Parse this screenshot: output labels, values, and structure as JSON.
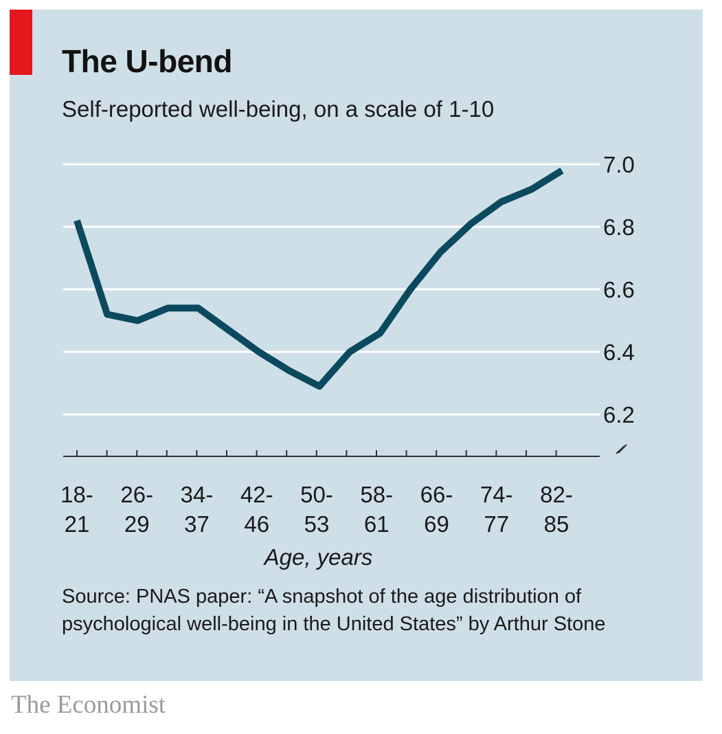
{
  "header": {
    "title": "The U-bend",
    "subtitle": "Self-reported well-being, on a scale of 1-10"
  },
  "chart_data": {
    "type": "line",
    "title": "The U-bend",
    "subtitle": "Self-reported well-being, on a scale of 1-10",
    "xlabel": "Age, years",
    "ylabel": "",
    "ylim": [
      6.1,
      7.0
    ],
    "yticks": [
      6.2,
      6.4,
      6.6,
      6.8,
      7.0
    ],
    "ytick_labels": [
      "6.2",
      "6.4",
      "6.6",
      "6.8",
      "7.0"
    ],
    "grid": true,
    "axis_break": true,
    "x_labels": [
      {
        "top": "18-",
        "bottom": "21"
      },
      {
        "top": "26-",
        "bottom": "29"
      },
      {
        "top": "34-",
        "bottom": "37"
      },
      {
        "top": "42-",
        "bottom": "46"
      },
      {
        "top": "50-",
        "bottom": "53"
      },
      {
        "top": "58-",
        "bottom": "61"
      },
      {
        "top": "66-",
        "bottom": "69"
      },
      {
        "top": "74-",
        "bottom": "77"
      },
      {
        "top": "82-",
        "bottom": "85"
      }
    ],
    "series": [
      {
        "name": "Self-reported well-being",
        "color": "#0b4a5e",
        "values": [
          6.82,
          6.52,
          6.5,
          6.54,
          6.54,
          6.47,
          6.4,
          6.34,
          6.29,
          6.4,
          6.46,
          6.6,
          6.72,
          6.81,
          6.88,
          6.92,
          6.98
        ]
      }
    ]
  },
  "colors": {
    "panel_background": "#cfdfe8",
    "accent_red": "#e4181c",
    "gridline": "#ffffff",
    "line": "#0b4a5e"
  },
  "footer": {
    "source": "Source: PNAS paper: “A snapshot of the age distribution of psychological well-being in the United States” by Arthur Stone",
    "brand": "The Economist"
  }
}
